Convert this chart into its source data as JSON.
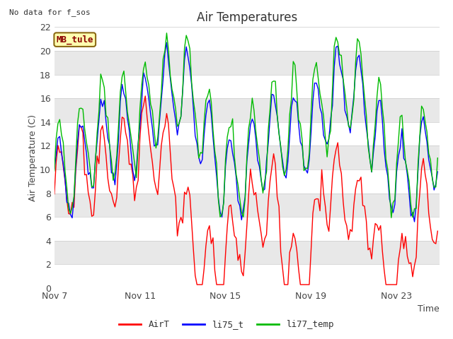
{
  "title": "Air Temperatures",
  "note": "No data for f_sos",
  "xlabel": "Time",
  "ylabel": "Air Temperature (C)",
  "ylim": [
    0,
    22
  ],
  "yticks": [
    0,
    2,
    4,
    6,
    8,
    10,
    12,
    14,
    16,
    18,
    20,
    22
  ],
  "xtick_labels": [
    "Nov 7",
    "Nov 11",
    "Nov 15",
    "Nov 19",
    "Nov 23"
  ],
  "legend_label": "MB_tule",
  "series_labels": [
    "AirT",
    "li75_t",
    "li77_temp"
  ],
  "series_colors": [
    "#ff0000",
    "#0000ff",
    "#00bb00"
  ],
  "line_width": 1.0,
  "figsize": [
    6.4,
    4.8
  ],
  "dpi": 100,
  "plot_bg_gray": "#e8e8e8",
  "plot_bg_white": "#f8f8f8",
  "note_fontsize": 8,
  "title_fontsize": 12,
  "tick_fontsize": 9,
  "ylabel_fontsize": 9,
  "legend_fontsize": 9
}
